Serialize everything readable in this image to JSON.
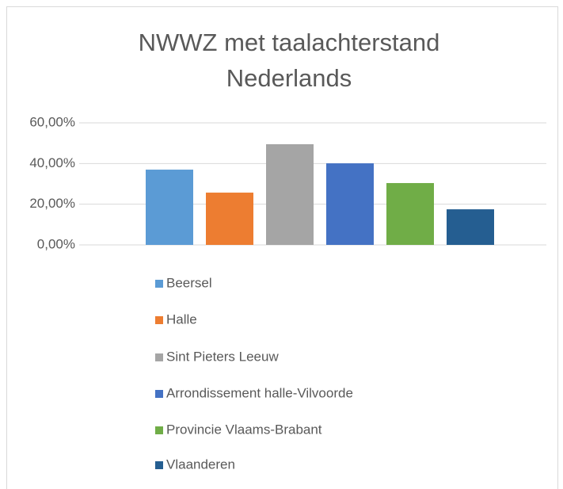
{
  "chart_data": {
    "type": "bar",
    "title": [
      "NWWZ met taalachterstand",
      "Nederlands"
    ],
    "series": [
      {
        "name": "Beersel",
        "color": "#5b9bd5",
        "values": [
          37.0
        ]
      },
      {
        "name": "Halle",
        "color": "#ed7d31",
        "values": [
          25.7
        ]
      },
      {
        "name": "Sint Pieters Leeuw",
        "color": "#a5a5a5",
        "values": [
          49.5
        ]
      },
      {
        "name": "Arrondissement halle-Vilvoorde",
        "color": "#4472c4",
        "values": [
          40.1
        ]
      },
      {
        "name": "Provincie Vlaams-Brabant",
        "color": "#70ad47",
        "values": [
          30.4
        ]
      },
      {
        "name": "Vlaanderen",
        "color": "#255e91",
        "values": [
          17.5
        ]
      }
    ],
    "ylim": [
      0,
      60
    ],
    "yticks": [
      {
        "value": 0,
        "label": "0,00%"
      },
      {
        "value": 20,
        "label": "20,00%"
      },
      {
        "value": 40,
        "label": "40,00%"
      },
      {
        "value": 60,
        "label": "60,00%"
      }
    ],
    "grid": true,
    "legend": "bottom"
  }
}
